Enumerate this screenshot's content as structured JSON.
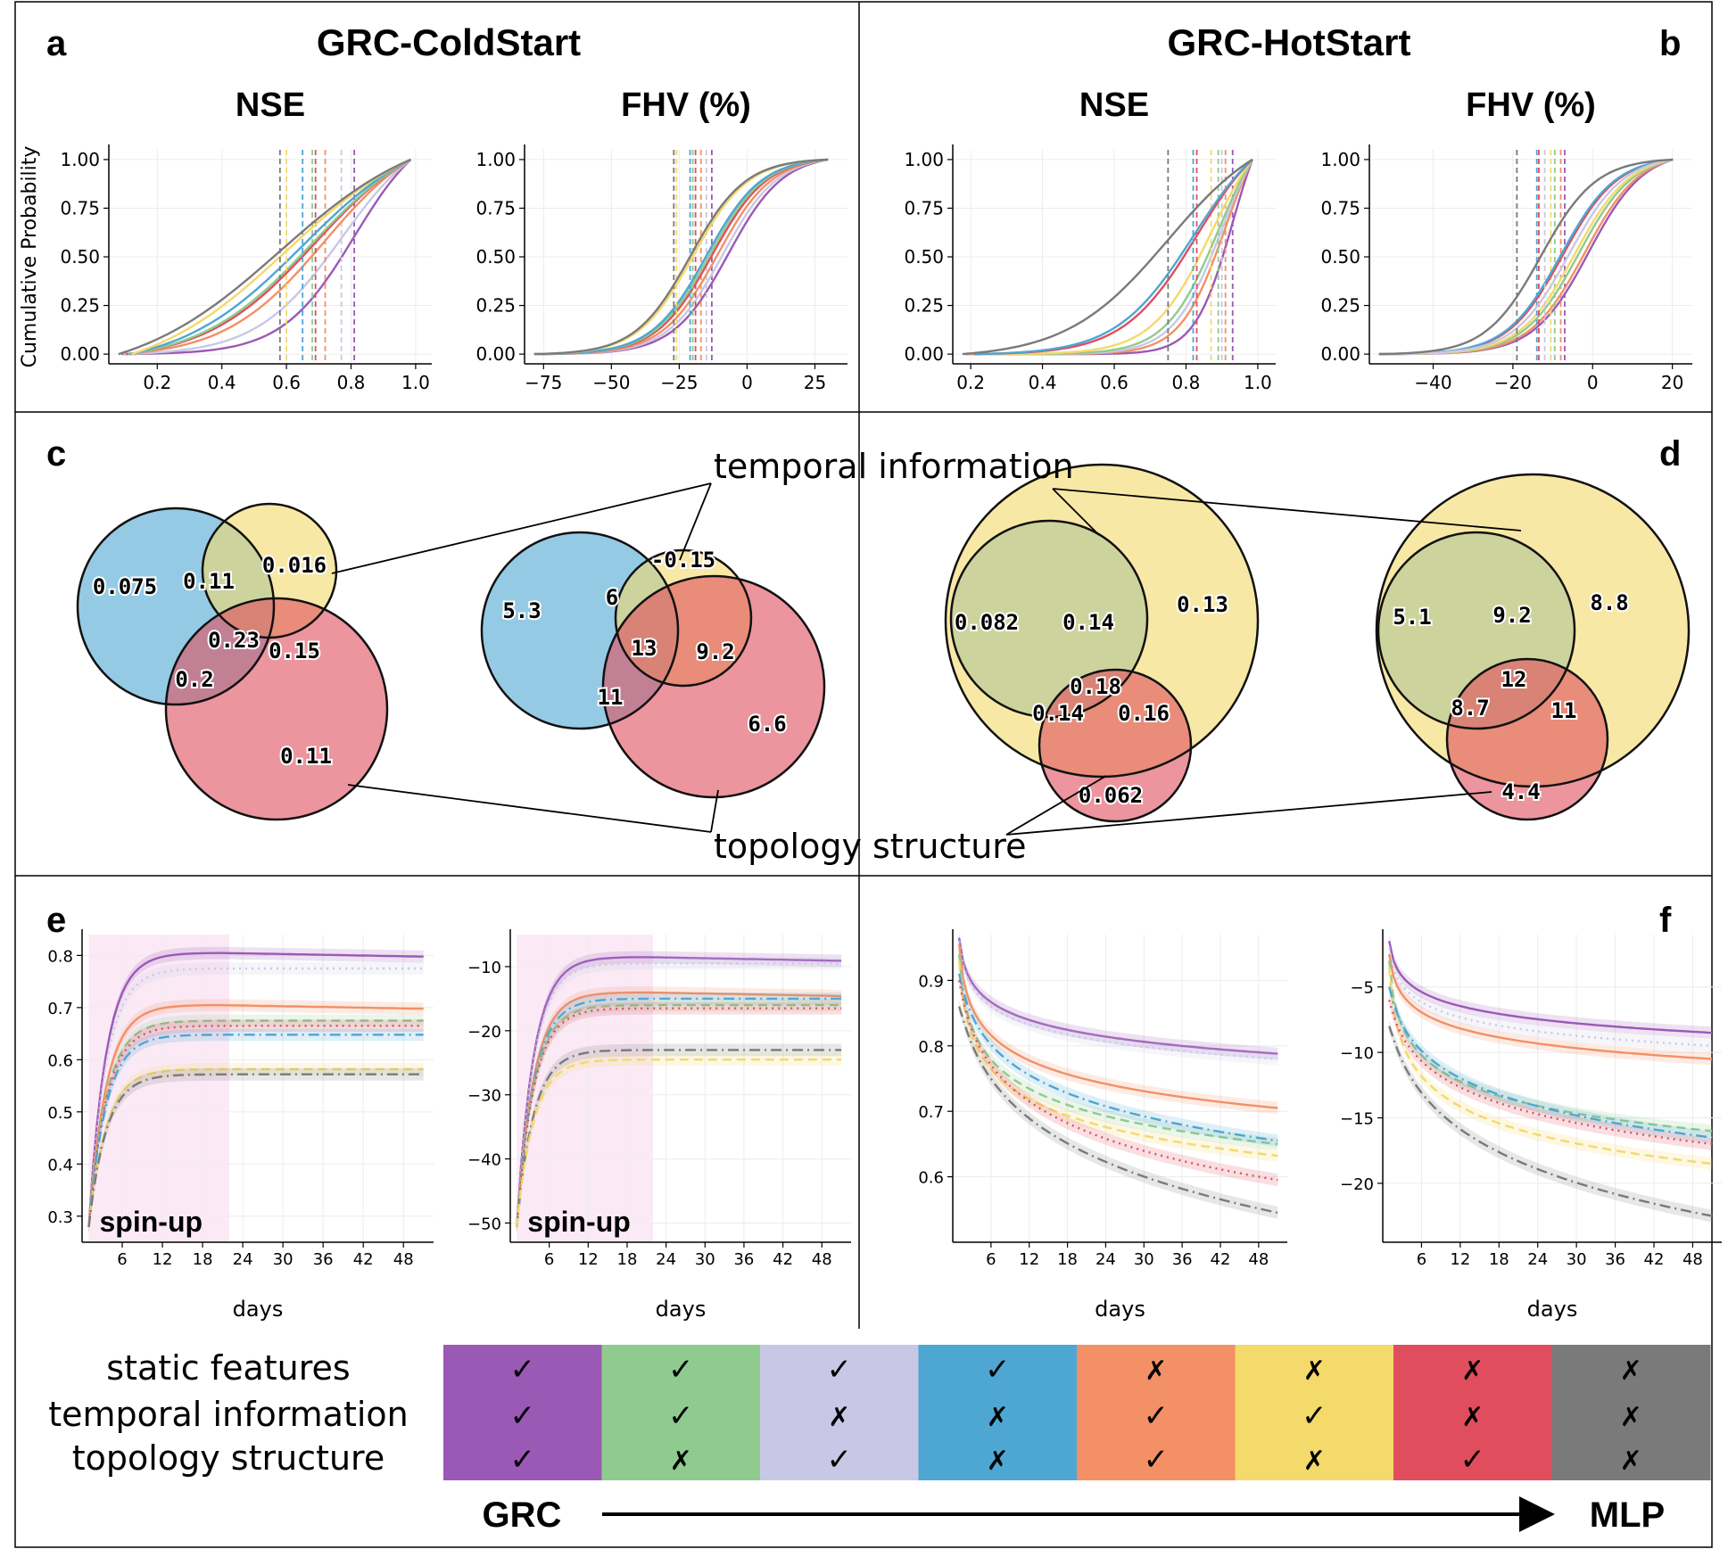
{
  "colors": {
    "purple": "#9b59b6",
    "green": "#8fcb8f",
    "lavender": "#c8c8e6",
    "blue": "#4ea6d3",
    "orange": "#f39066",
    "yellow": "#f4d96b",
    "red": "#e04e5e",
    "gray": "#7a7a7a"
  },
  "headers": {
    "a": "a",
    "b": "b",
    "c": "c",
    "d": "d",
    "e": "e",
    "f": "f",
    "cold": "GRC-ColdStart",
    "hot": "GRC-HotStart"
  },
  "chart_data": [
    {
      "id": "a1",
      "type": "line",
      "title": "NSE",
      "ylabel": "Cumulative Probability",
      "xlim": [
        0.05,
        1.05
      ],
      "ylim": [
        -0.05,
        1.05
      ],
      "xticks": [
        "0.2",
        "0.4",
        "0.6",
        "0.8",
        "1.0"
      ],
      "yticks": [
        "0.00",
        "0.25",
        "0.50",
        "0.75",
        "1.00"
      ],
      "series": [
        {
          "name": "purple",
          "median": 0.81
        },
        {
          "name": "lavender",
          "median": 0.77
        },
        {
          "name": "orange",
          "median": 0.72
        },
        {
          "name": "red",
          "median": 0.69
        },
        {
          "name": "green",
          "median": 0.68
        },
        {
          "name": "blue",
          "median": 0.65
        },
        {
          "name": "yellow",
          "median": 0.6
        },
        {
          "name": "gray",
          "median": 0.58
        }
      ]
    },
    {
      "id": "a2",
      "type": "line",
      "title": "FHV (%)",
      "xlim": [
        -82,
        37
      ],
      "ylim": [
        -0.05,
        1.05
      ],
      "xticks": [
        "−75",
        "−50",
        "−25",
        "0",
        "25"
      ],
      "yticks": [
        "0.00",
        "0.25",
        "0.50",
        "0.75",
        "1.00"
      ],
      "series": [
        {
          "name": "purple",
          "median": -13
        },
        {
          "name": "lavender",
          "median": -15
        },
        {
          "name": "orange",
          "median": -17
        },
        {
          "name": "red",
          "median": -19
        },
        {
          "name": "green",
          "median": -20
        },
        {
          "name": "blue",
          "median": -21
        },
        {
          "name": "yellow",
          "median": -26
        },
        {
          "name": "gray",
          "median": -27
        }
      ]
    },
    {
      "id": "b1",
      "type": "line",
      "title": "NSE",
      "xlim": [
        0.15,
        1.05
      ],
      "ylim": [
        -0.05,
        1.05
      ],
      "xticks": [
        "0.2",
        "0.4",
        "0.6",
        "0.8",
        "1.0"
      ],
      "yticks": [
        "0.00",
        "0.25",
        "0.50",
        "0.75",
        "1.00"
      ],
      "series": [
        {
          "name": "purple",
          "median": 0.93
        },
        {
          "name": "orange",
          "median": 0.91
        },
        {
          "name": "lavender",
          "median": 0.9
        },
        {
          "name": "green",
          "median": 0.89
        },
        {
          "name": "yellow",
          "median": 0.87
        },
        {
          "name": "red",
          "median": 0.83
        },
        {
          "name": "blue",
          "median": 0.82
        },
        {
          "name": "gray",
          "median": 0.75
        }
      ]
    },
    {
      "id": "b2",
      "type": "line",
      "title": "FHV (%)",
      "xlim": [
        -56,
        25
      ],
      "ylim": [
        -0.05,
        1.05
      ],
      "xticks": [
        "−40",
        "−20",
        "0",
        "20"
      ],
      "yticks": [
        "0.00",
        "0.25",
        "0.50",
        "0.75",
        "1.00"
      ],
      "series": [
        {
          "name": "purple",
          "median": -7
        },
        {
          "name": "orange",
          "median": -8
        },
        {
          "name": "green",
          "median": -9.5
        },
        {
          "name": "yellow",
          "median": -10.5
        },
        {
          "name": "red",
          "median": -13.5
        },
        {
          "name": "blue",
          "median": -14
        },
        {
          "name": "lavender",
          "median": -12
        },
        {
          "name": "gray",
          "median": -19
        }
      ]
    },
    {
      "id": "e1",
      "type": "line",
      "xlabel": "days",
      "xlim": [
        0,
        52.5
      ],
      "ylim": [
        0.25,
        0.84
      ],
      "xticks": [
        "6",
        "12",
        "18",
        "24",
        "30",
        "36",
        "42",
        "48"
      ],
      "yticks": [
        "0.3",
        "0.4",
        "0.5",
        "0.6",
        "0.7",
        "0.8"
      ],
      "annotation": "spin-up",
      "spinup": [
        1,
        22
      ],
      "series": [
        {
          "name": "purple",
          "plateau": 0.805,
          "style": "solid"
        },
        {
          "name": "lavender",
          "plateau": 0.775,
          "style": "dotted"
        },
        {
          "name": "orange",
          "plateau": 0.705,
          "style": "solid"
        },
        {
          "name": "green",
          "plateau": 0.675,
          "style": "dashed"
        },
        {
          "name": "red",
          "plateau": 0.665,
          "style": "dotted"
        },
        {
          "name": "blue",
          "plateau": 0.648,
          "style": "dashdot"
        },
        {
          "name": "yellow",
          "plateau": 0.582,
          "style": "dashed"
        },
        {
          "name": "gray",
          "plateau": 0.572,
          "style": "dashdot"
        }
      ]
    },
    {
      "id": "e2",
      "type": "line",
      "xlabel": "days",
      "xlim": [
        0,
        52.5
      ],
      "ylim": [
        -53,
        -5
      ],
      "xticks": [
        "6",
        "12",
        "18",
        "24",
        "30",
        "36",
        "42",
        "48"
      ],
      "yticks": [
        "−10",
        "−20",
        "−30",
        "−40",
        "−50"
      ],
      "annotation": "spin-up",
      "spinup": [
        1,
        22
      ],
      "series": [
        {
          "name": "purple",
          "plateau": -8.5,
          "style": "solid"
        },
        {
          "name": "lavender",
          "plateau": -9.5,
          "style": "dotted"
        },
        {
          "name": "orange",
          "plateau": -14,
          "style": "solid"
        },
        {
          "name": "blue",
          "plateau": -15,
          "style": "dashdot"
        },
        {
          "name": "green",
          "plateau": -16,
          "style": "dashed"
        },
        {
          "name": "red",
          "plateau": -16.5,
          "style": "dotted"
        },
        {
          "name": "gray",
          "plateau": -23,
          "style": "dashdot"
        },
        {
          "name": "yellow",
          "plateau": -24.5,
          "style": "dashed"
        }
      ]
    },
    {
      "id": "f1",
      "type": "line",
      "xlabel": "days",
      "xlim": [
        0,
        52.5
      ],
      "ylim": [
        0.5,
        0.97
      ],
      "xticks": [
        "6",
        "12",
        "18",
        "24",
        "30",
        "36",
        "42",
        "48"
      ],
      "yticks": [
        "0.6",
        "0.7",
        "0.8",
        "0.9"
      ],
      "series": [
        {
          "name": "purple",
          "start": 0.965,
          "end": 0.788,
          "style": "solid"
        },
        {
          "name": "lavender",
          "start": 0.96,
          "end": 0.78,
          "style": "dotted"
        },
        {
          "name": "orange",
          "start": 0.955,
          "end": 0.705,
          "style": "solid"
        },
        {
          "name": "green",
          "start": 0.94,
          "end": 0.65,
          "style": "dashed"
        },
        {
          "name": "yellow",
          "start": 0.93,
          "end": 0.632,
          "style": "dashed"
        },
        {
          "name": "blue",
          "start": 0.91,
          "end": 0.655,
          "style": "dashdot"
        },
        {
          "name": "red",
          "start": 0.9,
          "end": 0.595,
          "style": "dotted"
        },
        {
          "name": "gray",
          "start": 0.86,
          "end": 0.545,
          "style": "dashdot"
        }
      ]
    },
    {
      "id": "f2",
      "type": "line",
      "xlabel": "days",
      "xlim": [
        0,
        52.5
      ],
      "ylim": [
        -24.5,
        -1
      ],
      "xticks": [
        "6",
        "12",
        "18",
        "24",
        "30",
        "36",
        "42",
        "48"
      ],
      "yticks": [
        "−5",
        "−10",
        "−15",
        "−20"
      ],
      "series": [
        {
          "name": "purple",
          "start": -1.5,
          "end": -8.5,
          "style": "solid"
        },
        {
          "name": "lavender",
          "start": -2,
          "end": -9.5,
          "style": "dotted"
        },
        {
          "name": "orange",
          "start": -2.5,
          "end": -10.5,
          "style": "solid"
        },
        {
          "name": "green",
          "start": -3,
          "end": -16,
          "style": "dashed"
        },
        {
          "name": "yellow",
          "start": -3.5,
          "end": -18.5,
          "style": "dashed"
        },
        {
          "name": "blue",
          "start": -5,
          "end": -16.5,
          "style": "dashdot"
        },
        {
          "name": "red",
          "start": -6,
          "end": -17,
          "style": "dotted"
        },
        {
          "name": "gray",
          "start": -8,
          "end": -22.5,
          "style": "dashdot"
        }
      ]
    }
  ],
  "venn": {
    "label_temporal": "temporal information",
    "label_topology": "topology structure",
    "c1": [
      "0.075",
      "0.11",
      "0.016",
      "0.23",
      "0.15",
      "0.2",
      "0.11"
    ],
    "c2": [
      "5.3",
      "6",
      "-0.15",
      "13",
      "9.2",
      "11",
      "6.6"
    ],
    "d1": [
      "0.082",
      "0.14",
      "0.13",
      "0.18",
      "0.16",
      "0.14",
      "0.062"
    ],
    "d2": [
      "5.1",
      "9.2",
      "8.8",
      "12",
      "11",
      "8.7",
      "4.4"
    ]
  },
  "legend": {
    "rows": [
      "static features",
      "temporal information",
      "topology structure"
    ],
    "check": "✓",
    "cross": "✗",
    "columns": [
      {
        "color": "purple",
        "marks": [
          "✓",
          "✓",
          "✓"
        ]
      },
      {
        "color": "green",
        "marks": [
          "✓",
          "✓",
          "✗"
        ]
      },
      {
        "color": "lavender",
        "marks": [
          "✓",
          "✗",
          "✓"
        ]
      },
      {
        "color": "blue",
        "marks": [
          "✓",
          "✗",
          "✗"
        ]
      },
      {
        "color": "orange",
        "marks": [
          "✗",
          "✓",
          "✓"
        ]
      },
      {
        "color": "yellow",
        "marks": [
          "✗",
          "✓",
          "✗"
        ]
      },
      {
        "color": "red",
        "marks": [
          "✗",
          "✗",
          "✓"
        ]
      },
      {
        "color": "gray",
        "marks": [
          "✗",
          "✗",
          "✗"
        ]
      }
    ],
    "arrow_left": "GRC",
    "arrow_right": "MLP"
  }
}
